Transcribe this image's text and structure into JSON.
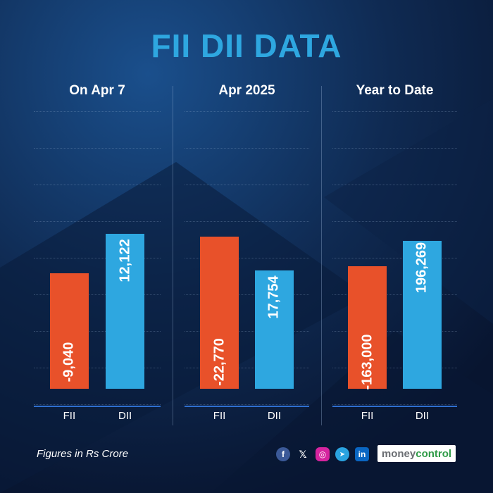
{
  "title": "FII DII DATA",
  "footnote": "Figures in Rs Crore",
  "brand": {
    "part1": "money",
    "part2": "control"
  },
  "social_icons": [
    "facebook-icon",
    "x-icon",
    "instagram-icon",
    "telegram-icon",
    "linkedin-icon"
  ],
  "colors": {
    "fii": "#e8512a",
    "dii": "#2ea7e0",
    "title": "#2ea7e0",
    "background": "#0b1a33"
  },
  "chart_data": [
    {
      "type": "bar",
      "title": "On Apr 7",
      "categories": [
        "FII",
        "DII"
      ],
      "values": [
        -9040,
        12122
      ],
      "data_labels": [
        "-9,040",
        "12,122"
      ],
      "stacked_waterfall": true
    },
    {
      "type": "bar",
      "title": "Apr 2025",
      "categories": [
        "FII",
        "DII"
      ],
      "values": [
        -22770,
        17754
      ],
      "data_labels": [
        "-22,770",
        "17,754"
      ],
      "stacked_waterfall": true
    },
    {
      "type": "bar",
      "title": "Year to Date",
      "categories": [
        "FII",
        "DII"
      ],
      "values": [
        -163000,
        196269
      ],
      "data_labels": [
        "-163,000",
        "196,269"
      ],
      "stacked_waterfall": true
    }
  ]
}
